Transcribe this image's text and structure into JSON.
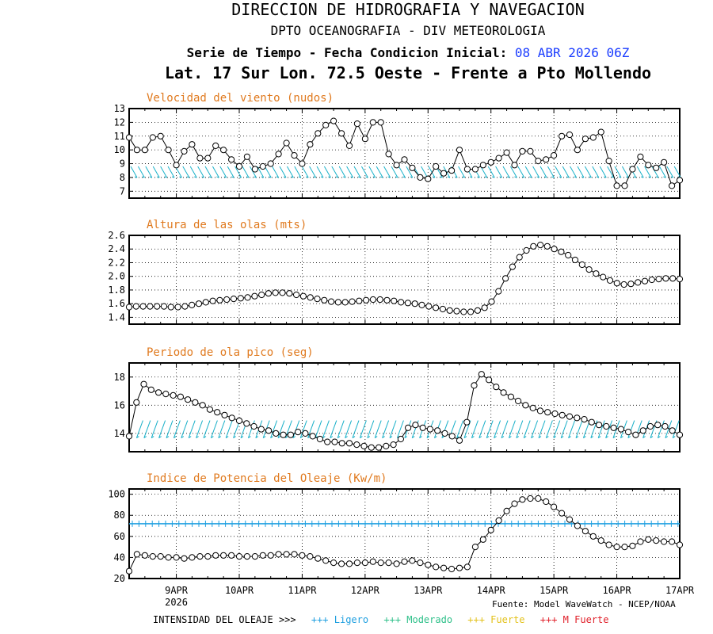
{
  "header": {
    "title": "DIRECCION DE HIDROGRAFIA Y NAVEGACION",
    "subtitle": "DPTO OCEANOGRAFIA - DIV METEOROLOGIA",
    "serie_label": "Serie de Tiempo - Fecha Condicion Inicial:",
    "serie_date": "08 ABR 2026 06Z",
    "location": "Lat. 17 Sur  Lon. 72.5 Oeste - Frente a Pto Mollendo"
  },
  "footer": {
    "source": "Fuente: Model WaveWatch - NCEP/NOAA",
    "intensity_label": "INTENSIDAD DEL OLEAJE >>>",
    "categories": [
      {
        "label": "+++ Ligero",
        "color": "#1e9fe0"
      },
      {
        "label": "+++ Moderado",
        "color": "#2fc08a"
      },
      {
        "label": "+++ Fuerte",
        "color": "#e3c21d"
      },
      {
        "label": "+++ M Fuerte",
        "color": "#e0202a"
      }
    ]
  },
  "x_axis": {
    "tick_labels": [
      "9APR",
      "10APR",
      "11APR",
      "12APR",
      "13APR",
      "14APR",
      "15APR",
      "16APR",
      "17APR"
    ],
    "year_label": "2026",
    "start_day": 8.25,
    "end_day": 17.0
  },
  "chart_data": [
    {
      "type": "line",
      "title": "Velocidad del viento (nudos)",
      "ylim": [
        6.5,
        13
      ],
      "yticks": [
        7,
        8,
        9,
        10,
        11,
        12,
        13
      ],
      "series": [
        {
          "values": [
            10.9,
            10.0,
            10.0,
            10.9,
            11.0,
            10.0,
            8.9,
            9.9,
            10.4,
            9.4,
            9.4,
            10.3,
            10.0,
            9.3,
            8.8,
            9.5,
            8.6,
            8.8,
            9.0,
            9.7,
            10.5,
            9.6,
            9.0,
            10.4,
            11.2,
            11.8,
            12.1,
            11.2,
            10.3,
            11.9,
            10.8,
            12.0,
            12.0,
            9.7,
            8.9,
            9.3,
            8.7,
            8.0,
            7.9,
            8.8,
            8.3,
            8.5,
            10.0,
            8.6,
            8.6,
            8.9,
            9.1,
            9.4,
            9.8,
            8.9,
            9.9,
            9.9,
            9.2,
            9.3,
            9.6,
            11.0,
            11.1,
            10.0,
            10.8,
            10.9,
            11.3,
            9.2,
            7.4,
            7.4,
            8.6,
            9.5,
            8.9,
            8.7,
            9.1,
            7.4,
            7.8
          ]
        }
      ],
      "arrows": {
        "direction": "S-SSE",
        "color": "#1ab0c8",
        "y_value": 8.4
      }
    },
    {
      "type": "line",
      "title": "Altura de las olas (mts)",
      "ylim": [
        1.3,
        2.6
      ],
      "yticks": [
        1.4,
        1.6,
        1.8,
        2.0,
        2.2,
        2.4,
        2.6
      ],
      "series": [
        {
          "values": [
            1.55,
            1.56,
            1.56,
            1.56,
            1.56,
            1.56,
            1.55,
            1.55,
            1.56,
            1.58,
            1.6,
            1.62,
            1.64,
            1.65,
            1.66,
            1.67,
            1.68,
            1.69,
            1.71,
            1.73,
            1.75,
            1.76,
            1.76,
            1.75,
            1.73,
            1.71,
            1.69,
            1.67,
            1.65,
            1.63,
            1.62,
            1.62,
            1.63,
            1.64,
            1.65,
            1.66,
            1.66,
            1.65,
            1.64,
            1.62,
            1.61,
            1.6,
            1.58,
            1.56,
            1.54,
            1.52,
            1.5,
            1.49,
            1.48,
            1.48,
            1.5,
            1.54,
            1.63,
            1.78,
            1.97,
            2.14,
            2.28,
            2.38,
            2.44,
            2.46,
            2.44,
            2.4,
            2.36,
            2.31,
            2.24,
            2.17,
            2.1,
            2.04,
            1.99,
            1.94,
            1.9,
            1.88,
            1.89,
            1.91,
            1.93,
            1.95,
            1.96,
            1.97,
            1.97,
            1.96
          ]
        }
      ]
    },
    {
      "type": "line",
      "title": "Periodo de ola pico (seg)",
      "ylim": [
        12.7,
        19
      ],
      "yticks": [
        14,
        16,
        18
      ],
      "series": [
        {
          "values": [
            13.8,
            16.2,
            17.5,
            17.1,
            16.9,
            16.8,
            16.7,
            16.6,
            16.4,
            16.2,
            16.0,
            15.7,
            15.5,
            15.3,
            15.1,
            14.9,
            14.7,
            14.5,
            14.3,
            14.2,
            14.0,
            13.9,
            13.9,
            14.1,
            14.0,
            13.8,
            13.6,
            13.4,
            13.4,
            13.3,
            13.3,
            13.2,
            13.1,
            13.0,
            13.0,
            13.1,
            13.2,
            13.6,
            14.4,
            14.6,
            14.4,
            14.3,
            14.2,
            14.0,
            13.8,
            13.5,
            14.8,
            17.4,
            18.2,
            17.8,
            17.3,
            16.9,
            16.6,
            16.3,
            16.0,
            15.8,
            15.6,
            15.5,
            15.4,
            15.3,
            15.2,
            15.1,
            15.0,
            14.8,
            14.6,
            14.5,
            14.4,
            14.3,
            14.1,
            13.9,
            14.2,
            14.5,
            14.6,
            14.5,
            14.2,
            13.9
          ]
        }
      ],
      "arrows": {
        "direction": "SSW",
        "color": "#1ab0c8",
        "y_value": 14.3
      }
    },
    {
      "type": "line",
      "title": "Indice de Potencia del Oleaje (Kw/m)",
      "ylim": [
        20,
        105
      ],
      "yticks": [
        20,
        40,
        60,
        80,
        100
      ],
      "series": [
        {
          "values": [
            27,
            43,
            42,
            41,
            41,
            40,
            40,
            39,
            40,
            41,
            41,
            42,
            42,
            42,
            41,
            41,
            41,
            42,
            42,
            43,
            43,
            43,
            42,
            41,
            39,
            37,
            35,
            34,
            34,
            35,
            35,
            36,
            35,
            35,
            34,
            36,
            37,
            35,
            33,
            31,
            30,
            29,
            30,
            31,
            50,
            57,
            66,
            75,
            84,
            91,
            95,
            96,
            96,
            93,
            88,
            82,
            76,
            70,
            65,
            60,
            56,
            52,
            50,
            50,
            51,
            55,
            57,
            56,
            55,
            55,
            52
          ]
        }
      ],
      "threshold": {
        "value": 72,
        "color": "#1e9fe0"
      }
    }
  ]
}
